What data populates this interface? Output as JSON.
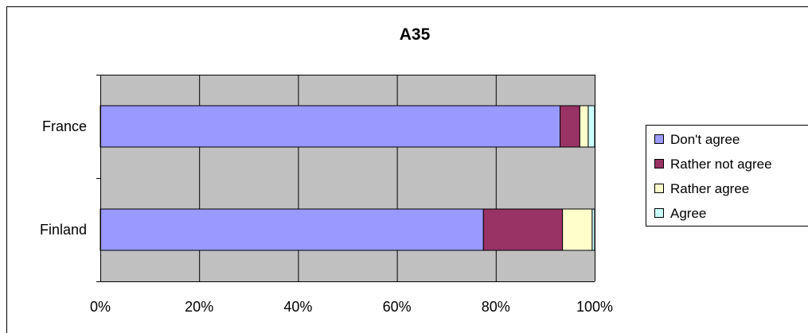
{
  "chart_data": {
    "type": "bar",
    "orientation": "horizontal",
    "stacked": "percent",
    "title": "A35",
    "categories": [
      "France",
      "Finland"
    ],
    "series": [
      {
        "name": "Don't agree",
        "values": [
          93.0,
          77.5
        ]
      },
      {
        "name": "Rather not agree",
        "values": [
          4.0,
          16.0
        ]
      },
      {
        "name": "Rather agree",
        "values": [
          1.7,
          6.0
        ]
      },
      {
        "name": "Agree",
        "values": [
          1.3,
          0.5
        ]
      }
    ],
    "x_ticks": [
      "0%",
      "20%",
      "40%",
      "60%",
      "80%",
      "100%"
    ],
    "xlim": [
      0,
      100
    ],
    "grid": true,
    "legend_position": "right",
    "colors": {
      "series": [
        "#9999FF",
        "#993366",
        "#FFFFCC",
        "#CCFFFF"
      ],
      "plot_background": "#C0C0C0",
      "gridlines": "#000000"
    }
  }
}
